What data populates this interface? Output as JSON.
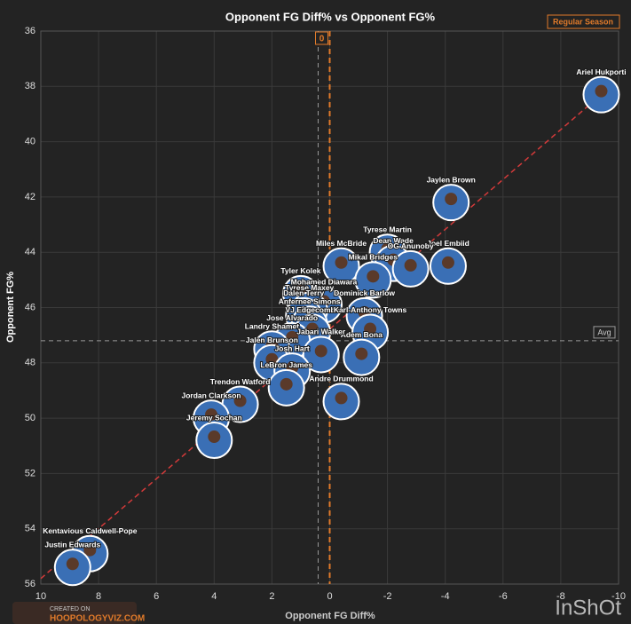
{
  "chart_data": {
    "type": "scatter",
    "title": "Opponent FG Diff% vs Opponent FG%",
    "badge": "Regular Season",
    "x_label": "Opponent FG Diff%",
    "y_label": "Opponent FG%",
    "xlim": [
      10,
      -10
    ],
    "ylim": [
      56,
      36
    ],
    "xticks": [
      10,
      8,
      6,
      4,
      2,
      0,
      -2,
      -4,
      -6,
      -8,
      -10
    ],
    "yticks": [
      36,
      38,
      40,
      42,
      44,
      46,
      48,
      50,
      52,
      54,
      56
    ],
    "grid": true,
    "zero_label": "0",
    "avg_label": "Avg",
    "avg_x": 0.4,
    "avg_y": 47.2,
    "trendline": {
      "x": [
        10,
        -9.4
      ],
      "y": [
        55.8,
        38.3
      ],
      "color": "#d23a3a"
    },
    "marker_color": "#3a6fb5",
    "points": [
      {
        "name": "Ariel Hukporti",
        "x": -9.4,
        "y": 38.3
      },
      {
        "name": "Jaylen Brown",
        "x": -4.2,
        "y": 42.2
      },
      {
        "name": "Joel Embiid",
        "x": -4.1,
        "y": 44.5
      },
      {
        "name": "Tyrese Martin",
        "x": -2.0,
        "y": 44.0
      },
      {
        "name": "Dean Wade",
        "x": -2.2,
        "y": 44.4
      },
      {
        "name": "OG Anunoby",
        "x": -2.8,
        "y": 44.6
      },
      {
        "name": "Miles McBride",
        "x": -0.4,
        "y": 44.5
      },
      {
        "name": "Mikal Bridges",
        "x": -1.5,
        "y": 45.0
      },
      {
        "name": "Tyler Kolek",
        "x": 1.0,
        "y": 45.5
      },
      {
        "name": "Mohamed Diawara",
        "x": 0.2,
        "y": 45.9
      },
      {
        "name": "Tyrese Maxey",
        "x": 0.7,
        "y": 46.1
      },
      {
        "name": "Dominick Barlow",
        "x": -1.2,
        "y": 46.3
      },
      {
        "name": "Dalen Terry",
        "x": 0.9,
        "y": 46.3
      },
      {
        "name": "Anfernee Simons",
        "x": 0.7,
        "y": 46.6
      },
      {
        "name": "VJ Edgecombe",
        "x": 0.6,
        "y": 46.9
      },
      {
        "name": "Karl-Anthony Towns",
        "x": -1.4,
        "y": 46.9
      },
      {
        "name": "Jose Alvarado",
        "x": 1.3,
        "y": 47.2
      },
      {
        "name": "Landry Shamet",
        "x": 2.0,
        "y": 47.5
      },
      {
        "name": "Adem Bona",
        "x": -1.1,
        "y": 47.8
      },
      {
        "name": "Jabari Walker",
        "x": 0.3,
        "y": 47.7
      },
      {
        "name": "Jalen Brunson",
        "x": 2.0,
        "y": 48.0
      },
      {
        "name": "Josh Hart",
        "x": 1.3,
        "y": 48.3
      },
      {
        "name": "LeBron James",
        "x": 1.5,
        "y": 48.9
      },
      {
        "name": "Andre Drummond",
        "x": -0.4,
        "y": 49.4
      },
      {
        "name": "Trendon Watford",
        "x": 3.1,
        "y": 49.5
      },
      {
        "name": "Jordan Clarkson",
        "x": 4.1,
        "y": 50.0
      },
      {
        "name": "Jeremy Sochan",
        "x": 4.0,
        "y": 50.8
      },
      {
        "name": "Kentavious Caldwell-Pope",
        "x": 8.3,
        "y": 54.9
      },
      {
        "name": "Justin Edwards",
        "x": 8.9,
        "y": 55.4
      }
    ],
    "footer_small": "CREATED ON",
    "footer_site": "HOOPOLOGYVIZ.COM",
    "watermark": "InShOt"
  }
}
